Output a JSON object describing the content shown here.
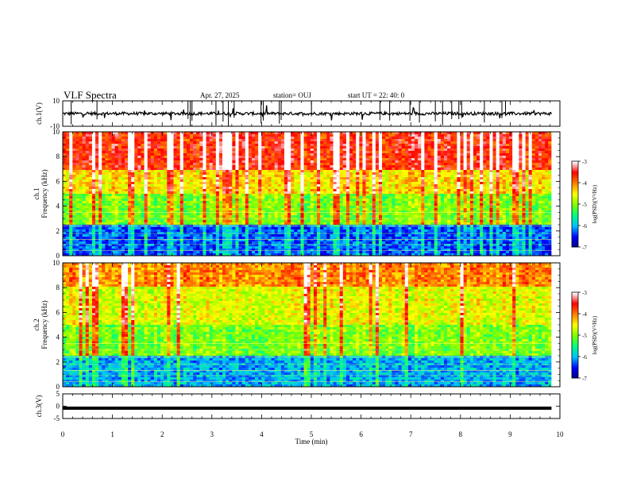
{
  "header": {
    "title": "VLF Spectra",
    "date": "Apr. 27, 2025",
    "station": "station= OUJ",
    "start_ut": "start  UT =   22: 40: 0"
  },
  "chart_data": [
    {
      "type": "line",
      "panel": "ch1-waveform",
      "ylabel": "ch.1(V)",
      "ylim": [
        -10,
        10
      ],
      "yticks": [
        "10",
        "-10"
      ],
      "x": [
        0,
        9.83
      ],
      "baseline_value": 0,
      "grid": false
    },
    {
      "type": "heatmap",
      "panel": "ch1-spectrogram",
      "ylabel": "ch.1\nFrequency (kHz)",
      "ylim": [
        0,
        10
      ],
      "yticks": [
        "0",
        "2",
        "4",
        "6",
        "8",
        "10"
      ],
      "xlim": [
        0,
        9.83
      ],
      "colorbar": {
        "label": "log(PSD)(V²/Hz)",
        "range": [
          -7,
          -3
        ],
        "ticks": [
          "-3",
          "-4",
          "-5",
          "-6",
          "-7"
        ]
      },
      "approx_log_psd_by_band": [
        {
          "band_khz": [
            0,
            2.5
          ],
          "value": -6.3
        },
        {
          "band_khz": [
            2.5,
            5
          ],
          "value": -5.0
        },
        {
          "band_khz": [
            5,
            7
          ],
          "value": -4.4
        },
        {
          "band_khz": [
            7,
            10
          ],
          "value": -3.6
        }
      ]
    },
    {
      "type": "heatmap",
      "panel": "ch2-spectrogram",
      "ylabel": "ch.2\nFrequency (kHz)",
      "ylim": [
        0,
        10
      ],
      "yticks": [
        "0",
        "2",
        "4",
        "6",
        "8",
        "10"
      ],
      "xlim": [
        0,
        9.83
      ],
      "colorbar": {
        "label": "log(PSD)(V²/Hz)",
        "range": [
          -7,
          -3
        ],
        "ticks": [
          "-3",
          "-4",
          "-5",
          "-6",
          "-7"
        ]
      },
      "approx_log_psd_by_band": [
        {
          "band_khz": [
            0,
            2.5
          ],
          "value": -6.0
        },
        {
          "band_khz": [
            2.5,
            5
          ],
          "value": -5.0
        },
        {
          "band_khz": [
            5,
            8
          ],
          "value": -4.6
        },
        {
          "band_khz": [
            8,
            10
          ],
          "value": -4.0
        }
      ]
    },
    {
      "type": "line",
      "panel": "ch3-waveform",
      "ylabel": "ch.3(V)",
      "ylim": [
        -5,
        5
      ],
      "yticks": [
        "5",
        "0",
        "-5"
      ],
      "x": [
        0,
        9.83
      ],
      "baseline_value": -0.8,
      "grid": false
    }
  ],
  "x_axis": {
    "xlabel": "Time  (min)",
    "xlim": [
      0,
      10
    ],
    "ticks": [
      "0",
      "1",
      "2",
      "3",
      "4",
      "5",
      "6",
      "7",
      "8",
      "9",
      "10"
    ]
  },
  "colors": {
    "colormap": [
      "#00007f",
      "#0000ff",
      "#00bfff",
      "#00ff7f",
      "#7fff00",
      "#ffff00",
      "#ff7f00",
      "#ff0000",
      "#ffffff"
    ]
  }
}
